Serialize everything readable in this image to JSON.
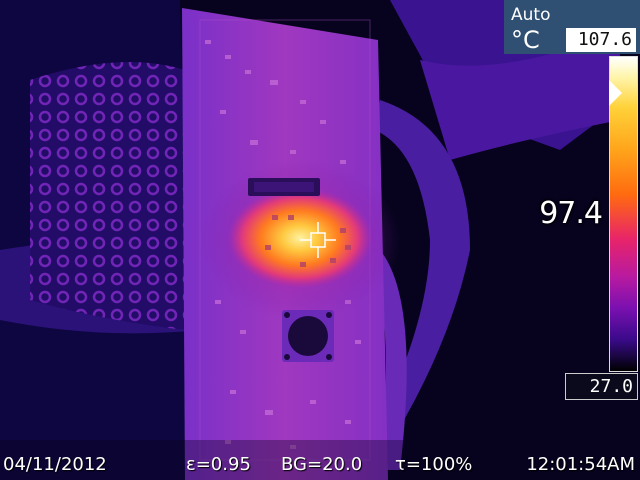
{
  "range": {
    "mode": "Auto",
    "unit": "°C",
    "max": "107.6",
    "min": "27.0"
  },
  "spot": {
    "value": "97.4"
  },
  "status": {
    "date": "04/11/2012",
    "emissivity": "ε=0.95",
    "background": "BG=20.0",
    "transmission": "τ=100%",
    "time": "12:01:54AM"
  },
  "colors": {
    "palette_hot": "#ffe060",
    "palette_mid": "#d0208a",
    "palette_cold": "#2a0870",
    "panel": "#2f4f73"
  },
  "icons": {
    "spot_marker": "crosshair-icon",
    "level_marker": "triangle-pointer-icon"
  }
}
